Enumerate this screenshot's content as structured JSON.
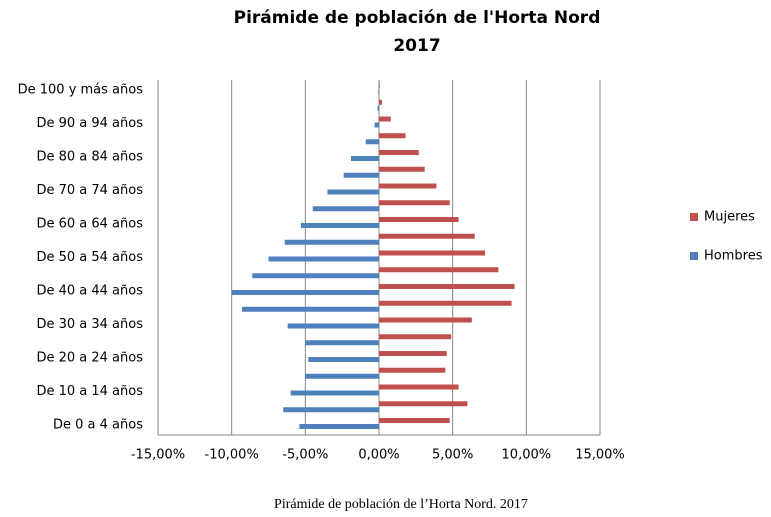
{
  "chart_data": {
    "type": "bar",
    "orientation": "horizontal",
    "title": "Pirámide de población de l'Horta Nord",
    "subtitle": "2017",
    "caption": "Pirámide de población de l’Horta Nord. 2017",
    "categories": [
      "De 0 a 4 años",
      null,
      "De 10 a 14 años",
      null,
      "De 20 a 24 años",
      null,
      "De 30 a 34 años",
      null,
      "De 40 a 44 años",
      null,
      "De 50 a 54 años",
      null,
      "De 60 a 64 años",
      null,
      "De 70 a 74 años",
      null,
      "De 80 a 84 años",
      null,
      "De 90 a 94 años",
      null,
      "De 100 y más años"
    ],
    "series": [
      {
        "name": "Mujeres",
        "color": "#c0504d",
        "values": [
          4.8,
          6.0,
          5.4,
          4.5,
          4.6,
          4.9,
          6.3,
          9.0,
          9.2,
          8.1,
          7.2,
          6.5,
          5.4,
          4.8,
          3.9,
          3.1,
          2.7,
          1.8,
          0.8,
          0.2,
          0.05
        ]
      },
      {
        "name": "Hombres",
        "color": "#4f81bd",
        "values": [
          -5.4,
          -6.5,
          -6.0,
          -5.0,
          -4.8,
          -5.0,
          -6.2,
          -9.3,
          -10.0,
          -8.6,
          -7.5,
          -6.4,
          -5.3,
          -4.5,
          -3.5,
          -2.4,
          -1.9,
          -0.9,
          -0.3,
          -0.1,
          -0.05
        ]
      }
    ],
    "xlim": [
      -15,
      15
    ],
    "xticks": [
      {
        "value": -15,
        "label": "-15,00%"
      },
      {
        "value": -10,
        "label": "-10,00%"
      },
      {
        "value": -5,
        "label": "-5,00%"
      },
      {
        "value": 0,
        "label": "0,00%"
      },
      {
        "value": 5,
        "label": "5,00%"
      },
      {
        "value": 10,
        "label": "10,00%"
      },
      {
        "value": 15,
        "label": "15,00%"
      }
    ],
    "grid": true,
    "legend": "right"
  }
}
